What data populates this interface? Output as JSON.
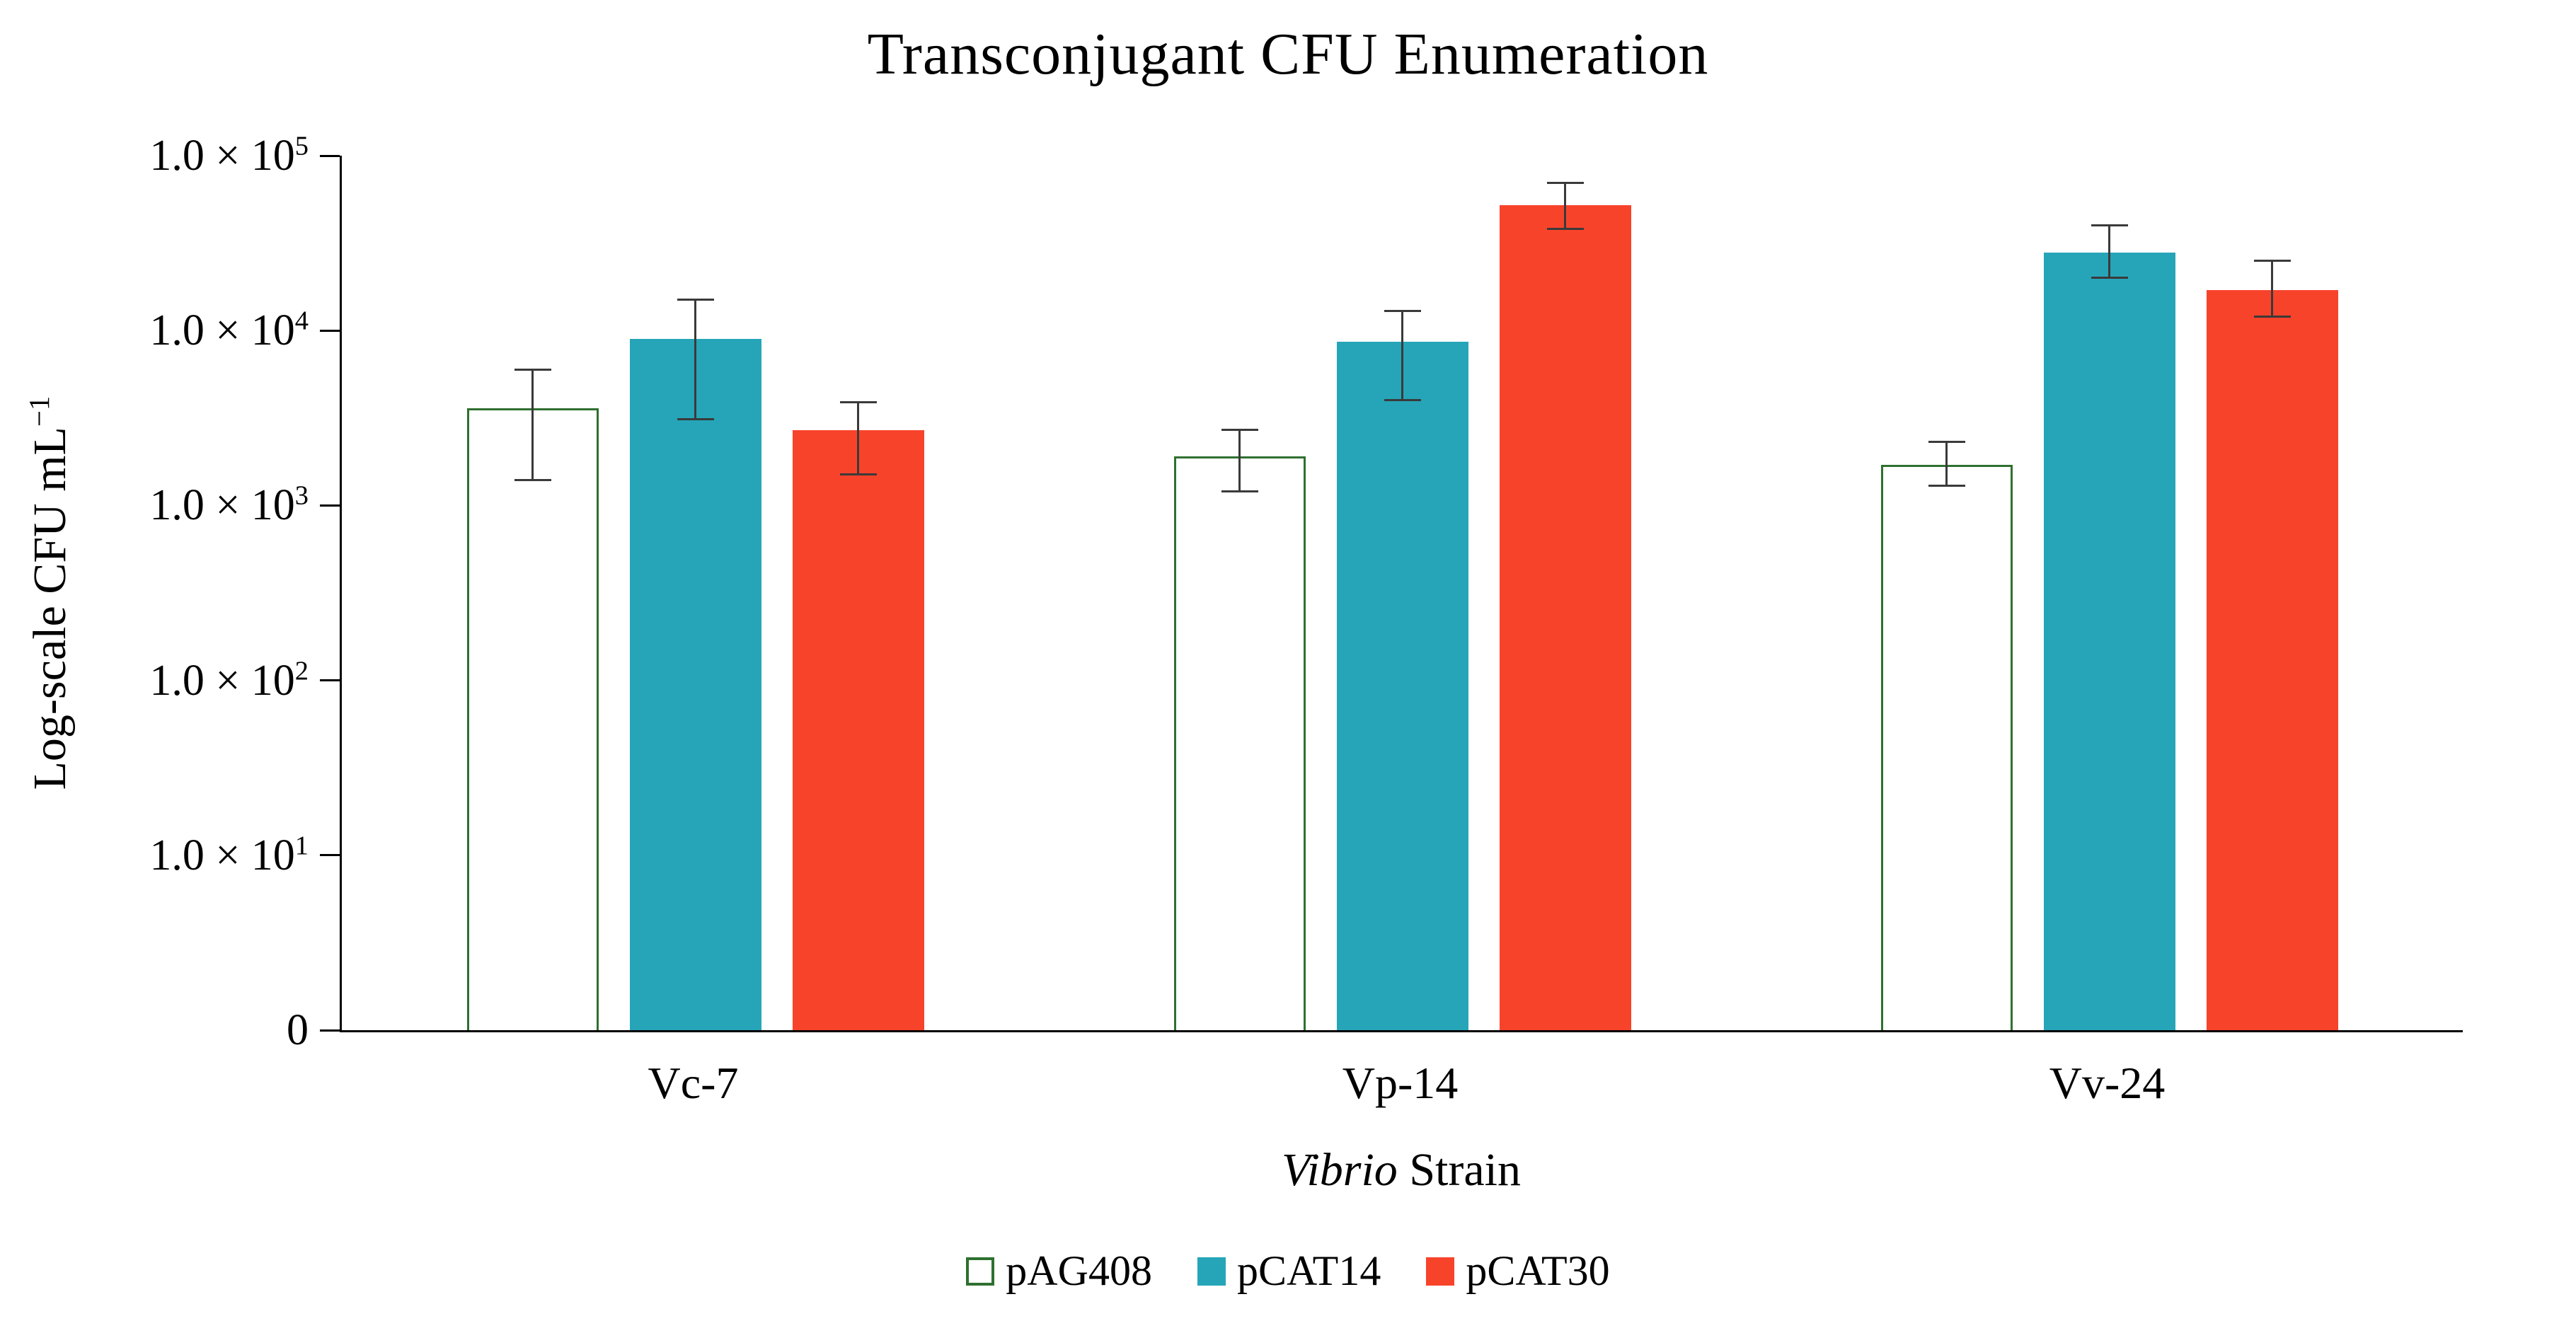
{
  "title": "Transconjugant CFU Enumeration",
  "y_axis": {
    "title_main": "Log-scale CFU mL",
    "title_sup": "−1",
    "ticks": [
      {
        "base": "1.0 × 10",
        "sup": "5",
        "value": 100000
      },
      {
        "base": "1.0 × 10",
        "sup": "4",
        "value": 10000
      },
      {
        "base": "1.0 × 10",
        "sup": "3",
        "value": 1000
      },
      {
        "base": "1.0 × 10",
        "sup": "2",
        "value": 100
      },
      {
        "base": "1.0 × 10",
        "sup": "1",
        "value": 10
      },
      {
        "base": "0",
        "sup": "",
        "value": 0
      }
    ]
  },
  "x_axis": {
    "title_italic": "Vibrio",
    "title_rest": " Strain"
  },
  "chart_data": {
    "type": "bar",
    "y_scale": "log10",
    "ylim": [
      1,
      100000
    ],
    "gridlines": false,
    "legend_position": "bottom",
    "categories": [
      "Vc-7",
      "Vp-14",
      "Vv-24"
    ],
    "series": [
      {
        "name": "pAG408",
        "fill": "#FFFFFF",
        "border": "#2F7030",
        "values": [
          3600,
          1900,
          1700
        ],
        "error_high": [
          6000,
          2700,
          2300
        ],
        "error_low": [
          1400,
          1200,
          1300
        ]
      },
      {
        "name": "pCAT14",
        "fill": "#26A5B8",
        "border": "#26A5B8",
        "values": [
          9000,
          8600,
          28000
        ],
        "error_high": [
          15000,
          13000,
          40000
        ],
        "error_low": [
          3100,
          4000,
          20000
        ]
      },
      {
        "name": "pCAT30",
        "fill": "#F8432B",
        "border": "#F8432B",
        "values": [
          2700,
          52000,
          17000
        ],
        "error_high": [
          3900,
          70000,
          25000
        ],
        "error_low": [
          1500,
          38000,
          12000
        ]
      }
    ],
    "error_bar_color": "#3A3A3A",
    "axis_color": "#000000"
  }
}
